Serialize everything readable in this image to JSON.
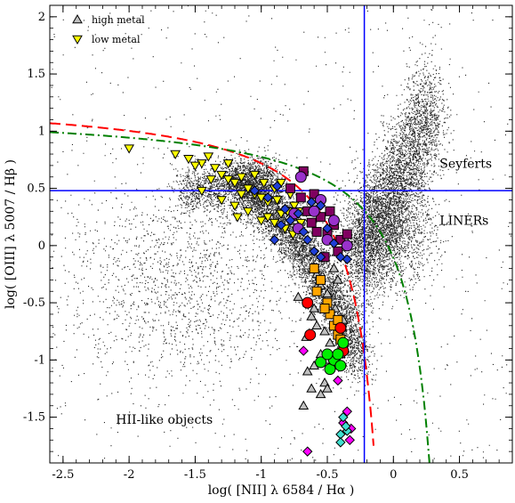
{
  "chart_data": {
    "type": "scatter",
    "title": "",
    "xlabel": "log( [NII] λ 6584  /  Hα )",
    "ylabel": "log( [OIII] λ 5007  /  Hβ )",
    "xlim": [
      -2.6,
      0.9
    ],
    "ylim": [
      -1.9,
      2.1
    ],
    "xticks": [
      -2.5,
      -2,
      -1.5,
      -1,
      -0.5,
      0,
      0.5
    ],
    "xtick_labels": [
      "-2.5",
      "-2",
      "-1.5",
      "-1",
      "-0.5",
      "0",
      "0.5"
    ],
    "yticks": [
      -1.5,
      -1,
      -0.5,
      0,
      0.5,
      1,
      1.5,
      2
    ],
    "ytick_labels": [
      "-1.5",
      "-1",
      "-0.5",
      "0",
      "0.5",
      "1",
      "1.5",
      "2"
    ],
    "grid": false,
    "legend_position": "top-left",
    "region_labels": [
      {
        "text": "Seyferts",
        "x": 0.35,
        "y": 0.72
      },
      {
        "text": "LINERs",
        "x": 0.35,
        "y": 0.22
      },
      {
        "text": "HII-like objects",
        "x": -2.1,
        "y": -1.52
      }
    ],
    "reference_lines": [
      {
        "orientation": "vertical",
        "x": -0.22,
        "color": "#0000ff"
      },
      {
        "orientation": "horizontal",
        "y": 0.48,
        "color": "#0000ff"
      }
    ],
    "curves": [
      {
        "style": "dashed",
        "color": "#ff0000",
        "formula": "0.61/(x-0.05)+1.3",
        "x_range": [
          -2.6,
          -0.15
        ]
      },
      {
        "style": "dash-dot",
        "color": "#008000",
        "formula": "0.61/(x-0.47)+1.19",
        "x_range": [
          -2.6,
          0.28
        ]
      }
    ],
    "background_cloud": {
      "description_points": 0,
      "color": "#000000"
    },
    "series": [
      {
        "name": "high metal",
        "marker": "triangle-up",
        "color": "#c0c0c0",
        "points": [
          [
            -0.72,
            -0.45
          ],
          [
            -0.65,
            -0.5
          ],
          [
            -0.6,
            -0.55
          ],
          [
            -0.55,
            -0.35
          ],
          [
            -0.5,
            -0.42
          ],
          [
            -0.47,
            -0.6
          ],
          [
            -0.45,
            -0.2
          ],
          [
            -0.42,
            -0.3
          ],
          [
            -0.58,
            -0.25
          ],
          [
            -0.62,
            -0.62
          ],
          [
            -0.52,
            -0.75
          ],
          [
            -0.48,
            -0.85
          ],
          [
            -0.55,
            -0.95
          ],
          [
            -0.6,
            -1.05
          ],
          [
            -0.65,
            -1.1
          ],
          [
            -0.52,
            -1.2
          ],
          [
            -0.55,
            -1.3
          ],
          [
            -0.5,
            -1.25
          ],
          [
            -0.68,
            -1.4
          ],
          [
            -0.62,
            -1.25
          ],
          [
            -0.45,
            -1.05
          ],
          [
            -0.4,
            -0.95
          ],
          [
            -0.5,
            -1.0
          ],
          [
            -0.58,
            -0.7
          ],
          [
            -0.66,
            -0.8
          ],
          [
            -0.44,
            -0.55
          ],
          [
            -0.38,
            -0.65
          ],
          [
            -0.42,
            -0.78
          ]
        ]
      },
      {
        "name": "low metal",
        "marker": "triangle-down",
        "color": "#ffff00",
        "points": [
          [
            -2.0,
            0.85
          ],
          [
            -1.65,
            0.8
          ],
          [
            -1.55,
            0.76
          ],
          [
            -1.45,
            0.72
          ],
          [
            -1.4,
            0.78
          ],
          [
            -1.35,
            0.68
          ],
          [
            -1.3,
            0.62
          ],
          [
            -1.25,
            0.58
          ],
          [
            -1.2,
            0.55
          ],
          [
            -1.15,
            0.6
          ],
          [
            -1.1,
            0.5
          ],
          [
            -1.05,
            0.45
          ],
          [
            -1.0,
            0.42
          ],
          [
            -0.95,
            0.38
          ],
          [
            -0.9,
            0.5
          ],
          [
            -1.45,
            0.48
          ],
          [
            -1.2,
            0.35
          ],
          [
            -1.1,
            0.3
          ],
          [
            -1.0,
            0.22
          ],
          [
            -0.95,
            0.25
          ],
          [
            -0.9,
            0.2
          ],
          [
            -0.85,
            0.28
          ],
          [
            -0.8,
            0.3
          ],
          [
            -1.3,
            0.4
          ],
          [
            -1.15,
            0.45
          ],
          [
            -0.75,
            0.35
          ],
          [
            -0.7,
            0.2
          ],
          [
            -0.85,
            0.55
          ],
          [
            -1.25,
            0.72
          ],
          [
            -1.5,
            0.7
          ],
          [
            -1.05,
            0.62
          ],
          [
            -0.98,
            0.55
          ],
          [
            -0.78,
            0.45
          ],
          [
            -0.88,
            0.4
          ],
          [
            -1.38,
            0.58
          ],
          [
            -1.18,
            0.25
          ],
          [
            -0.82,
            0.15
          ],
          [
            -0.76,
            0.1
          ],
          [
            -0.72,
            0.3
          ]
        ]
      }
    ],
    "highlight_series": [
      {
        "marker": "square",
        "color": "#800060",
        "points": [
          [
            -0.68,
            0.65
          ],
          [
            -0.78,
            0.5
          ],
          [
            -0.7,
            0.42
          ],
          [
            -0.6,
            0.45
          ],
          [
            -0.65,
            0.3
          ],
          [
            -0.55,
            0.25
          ],
          [
            -0.5,
            0.1
          ],
          [
            -0.45,
            0.18
          ],
          [
            -0.4,
            0.05
          ],
          [
            -0.48,
            0.3
          ],
          [
            -0.42,
            -0.05
          ],
          [
            -0.58,
            0.12
          ],
          [
            -0.35,
            0.1
          ],
          [
            -0.52,
            -0.1
          ],
          [
            -0.62,
            0.2
          ]
        ]
      },
      {
        "marker": "circle",
        "color": "#9932cc",
        "points": [
          [
            -0.7,
            0.6
          ],
          [
            -0.75,
            0.28
          ],
          [
            -0.72,
            0.15
          ],
          [
            -0.6,
            0.3
          ],
          [
            -0.55,
            0.4
          ],
          [
            -0.5,
            0.05
          ],
          [
            -0.35,
            0.0
          ],
          [
            -0.45,
            0.22
          ]
        ]
      },
      {
        "marker": "diamond",
        "color": "#1f3fd6",
        "points": [
          [
            -1.05,
            0.48
          ],
          [
            -0.95,
            0.42
          ],
          [
            -0.88,
            0.52
          ],
          [
            -0.82,
            0.32
          ],
          [
            -0.78,
            0.22
          ],
          [
            -0.72,
            0.28
          ],
          [
            -0.68,
            0.12
          ],
          [
            -0.65,
            0.05
          ],
          [
            -0.6,
            -0.05
          ],
          [
            -0.55,
            -0.1
          ],
          [
            -0.5,
            0.15
          ],
          [
            -0.45,
            0.02
          ],
          [
            -0.4,
            -0.1
          ],
          [
            -0.35,
            -0.12
          ],
          [
            -0.55,
            0.35
          ],
          [
            -0.85,
            0.18
          ],
          [
            -0.9,
            0.05
          ],
          [
            -0.62,
            0.38
          ]
        ]
      },
      {
        "marker": "square",
        "color": "#ffa500",
        "points": [
          [
            -0.6,
            -0.2
          ],
          [
            -0.58,
            -0.4
          ],
          [
            -0.55,
            -0.3
          ],
          [
            -0.5,
            -0.5
          ],
          [
            -0.48,
            -0.6
          ],
          [
            -0.45,
            -0.7
          ],
          [
            -0.42,
            -0.78
          ],
          [
            -0.4,
            -0.82
          ],
          [
            -0.38,
            -0.9
          ],
          [
            -0.42,
            -0.65
          ],
          [
            -0.52,
            -0.55
          ]
        ]
      },
      {
        "marker": "circle",
        "color": "#ff0000",
        "points": [
          [
            -0.65,
            -0.5
          ],
          [
            -0.63,
            -0.78
          ],
          [
            -0.38,
            -0.92
          ],
          [
            -0.4,
            -0.72
          ]
        ]
      },
      {
        "marker": "circle",
        "color": "#00ee00",
        "points": [
          [
            -0.55,
            -1.02
          ],
          [
            -0.48,
            -1.08
          ],
          [
            -0.45,
            -1.0
          ],
          [
            -0.42,
            -0.95
          ],
          [
            -0.4,
            -1.05
          ],
          [
            -0.38,
            -0.85
          ],
          [
            -0.5,
            -0.95
          ]
        ]
      },
      {
        "marker": "diamond",
        "color": "#ff00ff",
        "points": [
          [
            -0.68,
            -0.92
          ],
          [
            -0.65,
            -1.8
          ],
          [
            -0.35,
            -1.45
          ],
          [
            -0.32,
            -1.6
          ],
          [
            -0.42,
            -1.18
          ],
          [
            -0.38,
            -1.55
          ],
          [
            -0.33,
            -1.7
          ]
        ]
      },
      {
        "marker": "diamond",
        "color": "#40e0d0",
        "points": [
          [
            -0.38,
            -1.5
          ],
          [
            -0.4,
            -1.65
          ],
          [
            -0.35,
            -1.62
          ],
          [
            -0.4,
            -1.72
          ],
          [
            -0.36,
            -1.58
          ]
        ]
      }
    ]
  }
}
